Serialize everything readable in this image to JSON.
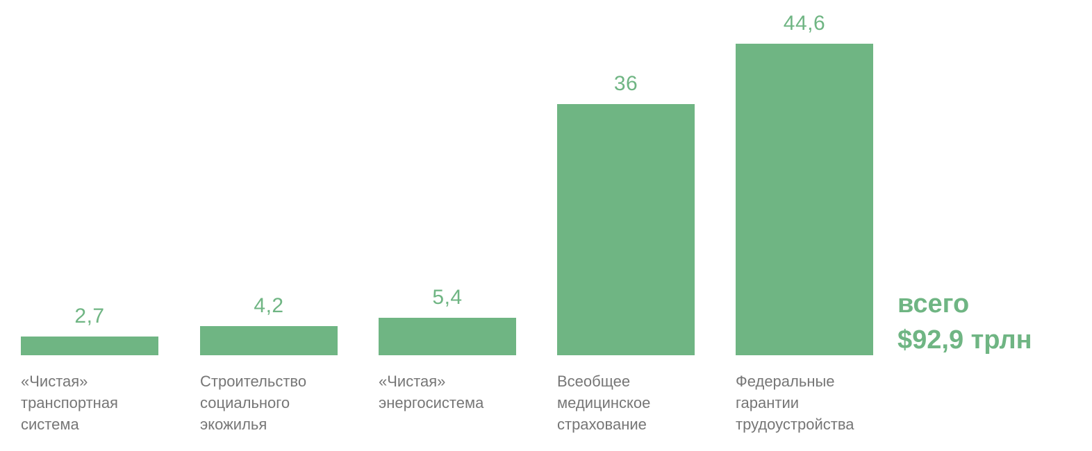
{
  "chart_data": {
    "type": "bar",
    "categories": [
      "«Чистая»\nтранспортная\nсистема",
      "Строительство\nсоциального\nэкожилья",
      "«Чистая»\nэнергосистема",
      "Всеобщее\nмедицинское\nстрахование",
      "Федеральные\nгарантии\nтрудоустройства"
    ],
    "values": [
      2.7,
      4.2,
      5.4,
      36,
      44.6
    ],
    "value_labels": [
      "2,7",
      "4,2",
      "5,4",
      "36",
      "44,6"
    ],
    "title": "",
    "xlabel": "",
    "ylabel": "",
    "ylim": [
      0,
      46
    ],
    "grid": false,
    "legend": false,
    "unit": "трлн $",
    "annotation": {
      "line1": "всего",
      "line2": "$92,9 трлн"
    },
    "colors": {
      "bar": "#6fb583",
      "value_label": "#6fb583",
      "category_label": "#767676",
      "total_label": "#6fb583",
      "background": "#ffffff"
    }
  }
}
